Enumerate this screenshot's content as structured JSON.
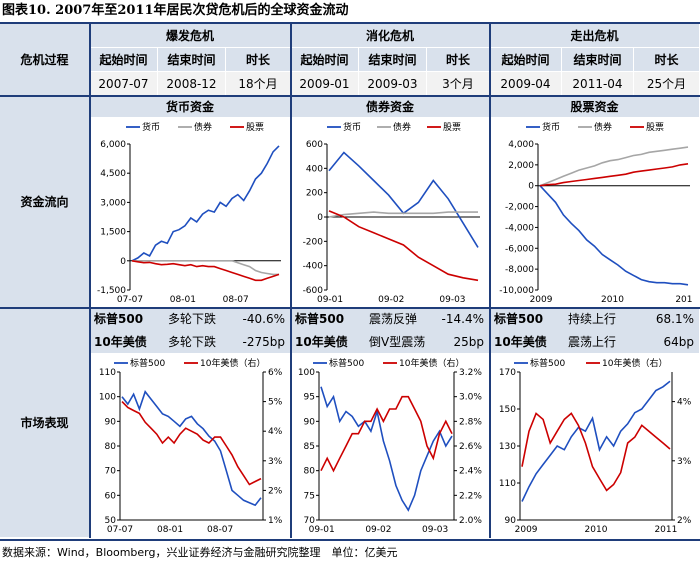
{
  "title": "图表10. 2007年至2011年居民次贷危机后的全球资金流动",
  "row_labels": {
    "crisis": "危机过程",
    "flows": "资金流向",
    "market": "市场表现"
  },
  "phases": [
    {
      "name": "爆发危机",
      "headers": [
        "起始时间",
        "结束时间",
        "时长"
      ],
      "values": [
        "2007-07",
        "2008-12",
        "18个月"
      ]
    },
    {
      "name": "消化危机",
      "headers": [
        "起始时间",
        "结束时间",
        "时长"
      ],
      "values": [
        "2009-01",
        "2009-03",
        "3个月"
      ]
    },
    {
      "name": "走出危机",
      "headers": [
        "起始时间",
        "结束时间",
        "时长"
      ],
      "values": [
        "2009-04",
        "2011-04",
        "25个月"
      ]
    }
  ],
  "flow_titles": [
    "货币资金",
    "债券资金",
    "股票资金"
  ],
  "market": [
    {
      "rows": [
        {
          "label": "标普500",
          "desc": "多轮下跌",
          "value": "-40.6%"
        },
        {
          "label": "10年美债",
          "desc": "多轮下跌",
          "value": "-275bp"
        }
      ]
    },
    {
      "rows": [
        {
          "label": "标普500",
          "desc": "震荡反弹",
          "value": "-14.4%"
        },
        {
          "label": "10年美债",
          "desc": "倒V型震荡",
          "value": "25bp"
        }
      ]
    },
    {
      "rows": [
        {
          "label": "标普500",
          "desc": "持续上行",
          "value": "68.1%"
        },
        {
          "label": "10年美债",
          "desc": "震荡上行",
          "value": "64bp"
        }
      ]
    }
  ],
  "source": "数据来源：Wind，Bloomberg，兴业证券经济与金融研究院整理　单位：亿美元",
  "colors": {
    "blue": "#1f4fbf",
    "gray": "#a6a6a6",
    "red": "#cc0000"
  },
  "chart_data": [
    {
      "type": "line",
      "title": "货币资金",
      "legend": [
        "货币",
        "债券",
        "股票"
      ],
      "x_ticks": [
        "07-07",
        "08-01",
        "08-07"
      ],
      "ylim": [
        -1500,
        6000
      ],
      "y_ticks": [
        -1500,
        0,
        1500,
        3000,
        4500,
        6000
      ],
      "y_tick_labels": [
        "-1,500",
        "0",
        "1,500",
        "3,000",
        "4,500",
        "6,000"
      ],
      "series": [
        {
          "name": "货币",
          "color": "blue",
          "values": [
            0,
            150,
            400,
            250,
            800,
            1000,
            900,
            1500,
            1600,
            1800,
            2200,
            2000,
            2400,
            2600,
            2500,
            3000,
            2800,
            3200,
            3400,
            3100,
            3600,
            4200,
            4500,
            5000,
            5600,
            5900
          ]
        },
        {
          "name": "债券",
          "color": "gray",
          "values": [
            0,
            0,
            0,
            0,
            0,
            0,
            0,
            0,
            0,
            0,
            0,
            0,
            0,
            0,
            0,
            0,
            0,
            0,
            -100,
            -200,
            -300,
            -500,
            -600,
            -650,
            -700,
            -700
          ]
        },
        {
          "name": "股票",
          "color": "red",
          "values": [
            0,
            -50,
            -100,
            -80,
            -150,
            -200,
            -180,
            -150,
            -200,
            -250,
            -200,
            -300,
            -250,
            -300,
            -300,
            -400,
            -500,
            -600,
            -700,
            -800,
            -900,
            -1000,
            -1000,
            -900,
            -800,
            -700
          ]
        }
      ]
    },
    {
      "type": "line",
      "title": "债券资金",
      "legend": [
        "货币",
        "债券",
        "股票"
      ],
      "x_ticks": [
        "09-01",
        "09-02",
        "09-03"
      ],
      "ylim": [
        -600,
        600
      ],
      "y_ticks": [
        -600,
        -400,
        -200,
        0,
        200,
        400,
        600
      ],
      "y_tick_labels": [
        "-600",
        "-400",
        "-200",
        "0",
        "200",
        "400",
        "600"
      ],
      "series": [
        {
          "name": "货币",
          "color": "blue",
          "values": [
            380,
            530,
            420,
            300,
            180,
            30,
            120,
            300,
            150,
            -50,
            -250
          ]
        },
        {
          "name": "债券",
          "color": "gray",
          "values": [
            0,
            20,
            30,
            40,
            30,
            30,
            30,
            30,
            40,
            40,
            40
          ]
        },
        {
          "name": "股票",
          "color": "red",
          "values": [
            50,
            0,
            -80,
            -130,
            -180,
            -230,
            -330,
            -400,
            -470,
            -500,
            -520
          ]
        }
      ]
    },
    {
      "type": "line",
      "title": "股票资金",
      "legend": [
        "货币",
        "债券",
        "股票"
      ],
      "x_ticks": [
        "2009",
        "2010",
        "201"
      ],
      "ylim": [
        -10000,
        4000
      ],
      "y_ticks": [
        -10000,
        -8000,
        -6000,
        -4000,
        -2000,
        0,
        2000,
        4000
      ],
      "y_tick_labels": [
        "-10,000",
        "-8,000",
        "-6,000",
        "-4,000",
        "-2,000",
        "0",
        "2,000",
        "4,000"
      ],
      "series": [
        {
          "name": "货币",
          "color": "blue",
          "values": [
            0,
            -800,
            -1600,
            -2800,
            -3600,
            -4300,
            -5200,
            -5800,
            -6600,
            -7100,
            -7600,
            -8200,
            -8600,
            -9000,
            -9200,
            -9300,
            -9300,
            -9400,
            -9400,
            -9500
          ]
        },
        {
          "name": "债券",
          "color": "gray",
          "values": [
            0,
            300,
            600,
            900,
            1200,
            1500,
            1700,
            1900,
            2200,
            2400,
            2500,
            2700,
            2900,
            3000,
            3200,
            3300,
            3400,
            3500,
            3600,
            3700
          ]
        },
        {
          "name": "股票",
          "color": "red",
          "values": [
            0,
            100,
            150,
            300,
            400,
            500,
            600,
            700,
            800,
            900,
            1000,
            1100,
            1300,
            1400,
            1500,
            1600,
            1700,
            1800,
            2000,
            2100
          ]
        }
      ]
    },
    {
      "type": "line",
      "title": "市场表现 2007-07~2008-12",
      "legend": [
        "标普500",
        "10年美债（右）"
      ],
      "x_ticks": [
        "07-07",
        "08-01",
        "08-07"
      ],
      "ylim": [
        50,
        110
      ],
      "y_ticks": [
        50,
        60,
        70,
        80,
        90,
        100,
        110
      ],
      "y_tick_labels": [
        "50",
        "60",
        "70",
        "80",
        "90",
        "100",
        "110"
      ],
      "y2lim": [
        1,
        6
      ],
      "y2_ticks": [
        1,
        2,
        3,
        4,
        5,
        6
      ],
      "y2_tick_labels": [
        "1%",
        "2%",
        "3%",
        "4%",
        "5%",
        "6%"
      ],
      "series": [
        {
          "name": "标普500",
          "color": "blue",
          "axis": "left",
          "values": [
            100,
            97,
            101,
            95,
            102,
            99,
            96,
            93,
            92,
            90,
            88,
            91,
            92,
            89,
            87,
            84,
            82,
            78,
            70,
            62,
            60,
            58,
            57,
            56,
            59
          ]
        },
        {
          "name": "10年美债（右）",
          "color": "red",
          "axis": "right",
          "values": [
            5.0,
            4.8,
            4.7,
            4.6,
            4.3,
            4.1,
            3.9,
            3.6,
            3.8,
            3.6,
            3.9,
            4.1,
            4.0,
            3.9,
            3.7,
            3.6,
            3.8,
            3.8,
            3.5,
            3.2,
            2.8,
            2.5,
            2.2,
            2.3,
            2.4
          ]
        }
      ]
    },
    {
      "type": "line",
      "title": "市场表现 2009-01~2009-03",
      "legend": [
        "标普500",
        "10年美债（右）"
      ],
      "x_ticks": [
        "09-01",
        "09-02",
        "09-03"
      ],
      "ylim": [
        70,
        100
      ],
      "y_ticks": [
        70,
        75,
        80,
        85,
        90,
        95,
        100
      ],
      "y_tick_labels": [
        "70",
        "75",
        "80",
        "85",
        "90",
        "95",
        "100"
      ],
      "y2lim": [
        2.0,
        3.2
      ],
      "y2_ticks": [
        2.0,
        2.2,
        2.4,
        2.6,
        2.8,
        3.0,
        3.2
      ],
      "y2_tick_labels": [
        "2.0%",
        "2.2%",
        "2.4%",
        "2.6%",
        "2.8%",
        "3.0%",
        "3.2%"
      ],
      "series": [
        {
          "name": "标普500",
          "color": "blue",
          "axis": "left",
          "values": [
            97,
            93,
            95,
            90,
            92,
            91,
            89,
            90,
            88,
            92,
            86,
            82,
            77,
            74,
            72,
            75,
            80,
            83,
            86,
            88,
            85,
            87
          ]
        },
        {
          "name": "10年美债（右）",
          "color": "red",
          "axis": "right",
          "values": [
            2.4,
            2.5,
            2.4,
            2.5,
            2.6,
            2.7,
            2.7,
            2.8,
            2.8,
            2.9,
            2.8,
            2.9,
            2.9,
            3.0,
            3.0,
            2.9,
            2.8,
            2.6,
            2.5,
            2.7,
            2.8,
            2.7
          ]
        }
      ]
    },
    {
      "type": "line",
      "title": "市场表现 2009-04~2011-04",
      "legend": [
        "标普500",
        "10年美债（右）"
      ],
      "x_ticks": [
        "2009",
        "2010",
        "2011"
      ],
      "ylim": [
        90,
        170
      ],
      "y_ticks": [
        90,
        110,
        130,
        150,
        170
      ],
      "y_tick_labels": [
        "90",
        "110",
        "130",
        "150",
        "170"
      ],
      "y2lim": [
        2,
        4.5
      ],
      "y2_ticks": [
        2,
        3,
        4
      ],
      "y2_tick_labels": [
        "2%",
        "3%",
        "4%"
      ],
      "series": [
        {
          "name": "标普500",
          "color": "blue",
          "axis": "left",
          "values": [
            100,
            108,
            115,
            120,
            125,
            130,
            128,
            135,
            140,
            138,
            145,
            128,
            135,
            130,
            138,
            142,
            148,
            150,
            155,
            160,
            162,
            165
          ]
        },
        {
          "name": "10年美债（右）",
          "color": "red",
          "axis": "right",
          "values": [
            2.9,
            3.5,
            3.8,
            3.7,
            3.3,
            3.5,
            3.7,
            3.8,
            3.6,
            3.3,
            2.9,
            2.7,
            2.5,
            2.6,
            2.8,
            3.3,
            3.4,
            3.6,
            3.5,
            3.4,
            3.3,
            3.2
          ]
        }
      ]
    }
  ]
}
